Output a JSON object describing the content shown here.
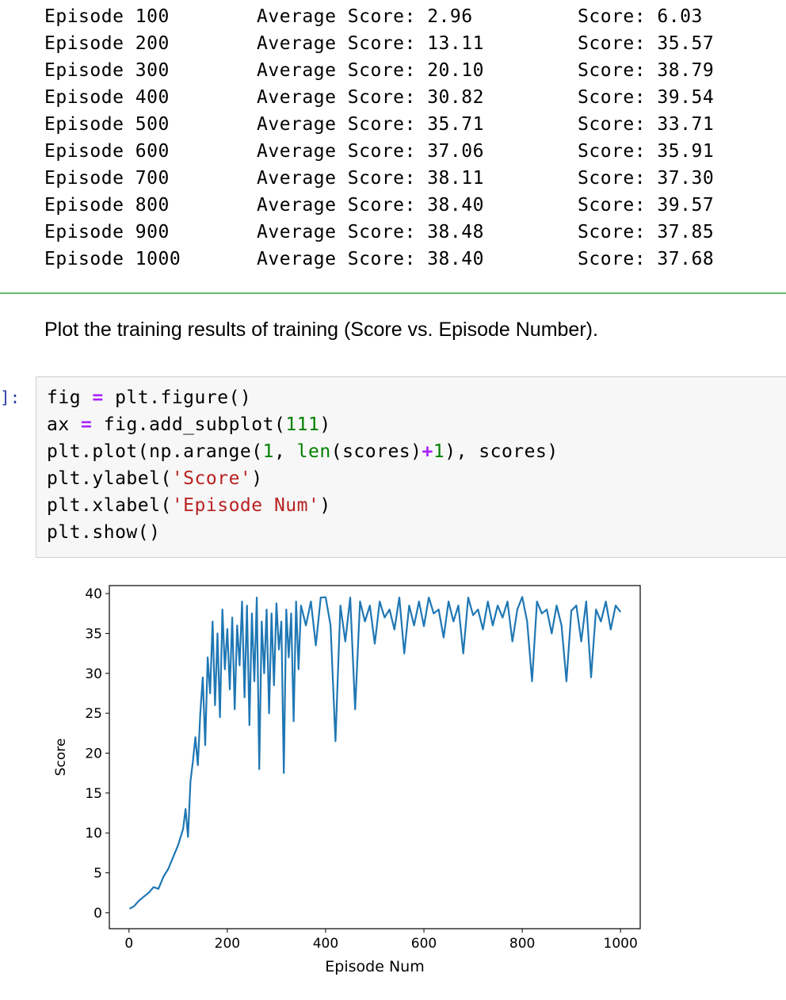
{
  "training_log": [
    {
      "episode": "Episode 100",
      "average": "Average Score: 2.96",
      "score": "Score: 6.03"
    },
    {
      "episode": "Episode 200",
      "average": "Average Score: 13.11",
      "score": "Score: 35.57"
    },
    {
      "episode": "Episode 300",
      "average": "Average Score: 20.10",
      "score": "Score: 38.79"
    },
    {
      "episode": "Episode 400",
      "average": "Average Score: 30.82",
      "score": "Score: 39.54"
    },
    {
      "episode": "Episode 500",
      "average": "Average Score: 35.71",
      "score": "Score: 33.71"
    },
    {
      "episode": "Episode 600",
      "average": "Average Score: 37.06",
      "score": "Score: 35.91"
    },
    {
      "episode": "Episode 700",
      "average": "Average Score: 38.11",
      "score": "Score: 37.30"
    },
    {
      "episode": "Episode 800",
      "average": "Average Score: 38.40",
      "score": "Score: 39.57"
    },
    {
      "episode": "Episode 900",
      "average": "Average Score: 38.48",
      "score": "Score: 37.85"
    },
    {
      "episode": "Episode 1000",
      "average": "Average Score: 38.40",
      "score": "Score: 37.68"
    }
  ],
  "markdown": {
    "text": "Plot the training results of training (Score vs. Episode Number)."
  },
  "code_cell": {
    "prompt": "]:",
    "lines": [
      [
        {
          "t": "fig "
        },
        {
          "t": "=",
          "c": "tk-op"
        },
        {
          "t": " plt.figure()"
        }
      ],
      [
        {
          "t": "ax "
        },
        {
          "t": "=",
          "c": "tk-op"
        },
        {
          "t": " fig.add_subplot("
        },
        {
          "t": "111",
          "c": "tk-num"
        },
        {
          "t": ")"
        }
      ],
      [
        {
          "t": "plt.plot(np.arange("
        },
        {
          "t": "1",
          "c": "tk-num"
        },
        {
          "t": ", "
        },
        {
          "t": "len",
          "c": "tk-builtin"
        },
        {
          "t": "(scores)"
        },
        {
          "t": "+",
          "c": "tk-op"
        },
        {
          "t": "1",
          "c": "tk-num"
        },
        {
          "t": "), scores)"
        }
      ],
      [
        {
          "t": "plt.ylabel("
        },
        {
          "t": "'Score'",
          "c": "tk-str"
        },
        {
          "t": ")"
        }
      ],
      [
        {
          "t": "plt.xlabel("
        },
        {
          "t": "'Episode Num'",
          "c": "tk-str"
        },
        {
          "t": ")"
        }
      ],
      [
        {
          "t": "plt.show()"
        }
      ]
    ]
  },
  "chart_data": {
    "type": "line",
    "title": "",
    "xlabel": "Episode Num",
    "ylabel": "Score",
    "xlim": [
      -40,
      1040
    ],
    "ylim": [
      -2,
      41
    ],
    "xticks": [
      0,
      200,
      400,
      600,
      800,
      1000
    ],
    "yticks": [
      0,
      5,
      10,
      15,
      20,
      25,
      30,
      35,
      40
    ],
    "grid": false,
    "legend": "none",
    "line_color": "#1f77b4",
    "series": [
      {
        "x": [
          1,
          10,
          20,
          30,
          40,
          50,
          60,
          70,
          80,
          90,
          100,
          110,
          115,
          120,
          125,
          130,
          135,
          140,
          145,
          150,
          155,
          160,
          165,
          170,
          175,
          180,
          185,
          190,
          195,
          200,
          205,
          210,
          215,
          220,
          225,
          230,
          235,
          240,
          245,
          250,
          255,
          260,
          265,
          270,
          275,
          280,
          285,
          290,
          295,
          300,
          305,
          310,
          315,
          320,
          325,
          330,
          335,
          340,
          345,
          350,
          360,
          370,
          380,
          390,
          400,
          410,
          420,
          430,
          440,
          450,
          460,
          470,
          480,
          490,
          500,
          510,
          520,
          530,
          540,
          550,
          560,
          570,
          580,
          590,
          600,
          610,
          620,
          630,
          640,
          650,
          660,
          670,
          680,
          690,
          700,
          710,
          720,
          730,
          740,
          750,
          760,
          770,
          780,
          790,
          800,
          810,
          820,
          830,
          840,
          850,
          860,
          870,
          880,
          890,
          900,
          910,
          920,
          930,
          940,
          950,
          960,
          970,
          980,
          990,
          1000
        ],
        "values": [
          0.5,
          0.8,
          1.5,
          2.0,
          2.5,
          3.2,
          3.0,
          4.5,
          5.5,
          7.0,
          8.5,
          10.5,
          13.0,
          9.5,
          16.5,
          19.0,
          22.0,
          18.5,
          25.0,
          29.5,
          21.0,
          32.0,
          27.5,
          36.5,
          26.0,
          35.0,
          24.5,
          38.0,
          30.5,
          35.57,
          28.0,
          37.0,
          25.5,
          36.0,
          31.0,
          39.0,
          27.0,
          38.5,
          23.5,
          37.5,
          29.0,
          39.5,
          18.0,
          36.5,
          30.0,
          38.0,
          25.0,
          37.5,
          28.5,
          38.79,
          33.0,
          36.5,
          17.5,
          38.0,
          32.0,
          37.5,
          24.0,
          39.0,
          30.5,
          38.5,
          36.0,
          39.0,
          33.5,
          39.5,
          39.54,
          36.0,
          21.5,
          38.5,
          34.0,
          39.5,
          25.5,
          39.0,
          36.5,
          38.5,
          33.71,
          39.0,
          37.0,
          38.0,
          35.5,
          39.5,
          32.5,
          38.5,
          36.0,
          39.0,
          35.91,
          39.5,
          37.5,
          38.0,
          34.5,
          39.0,
          36.5,
          38.5,
          32.5,
          39.5,
          37.3,
          38.0,
          35.5,
          39.0,
          36.0,
          38.5,
          37.0,
          39.0,
          34.0,
          38.0,
          39.57,
          36.5,
          29.0,
          39.0,
          37.5,
          38.0,
          35.0,
          38.5,
          36.0,
          29.0,
          37.85,
          38.5,
          34.0,
          39.0,
          29.5,
          38.0,
          36.5,
          39.0,
          35.5,
          38.5,
          37.68
        ]
      }
    ]
  }
}
